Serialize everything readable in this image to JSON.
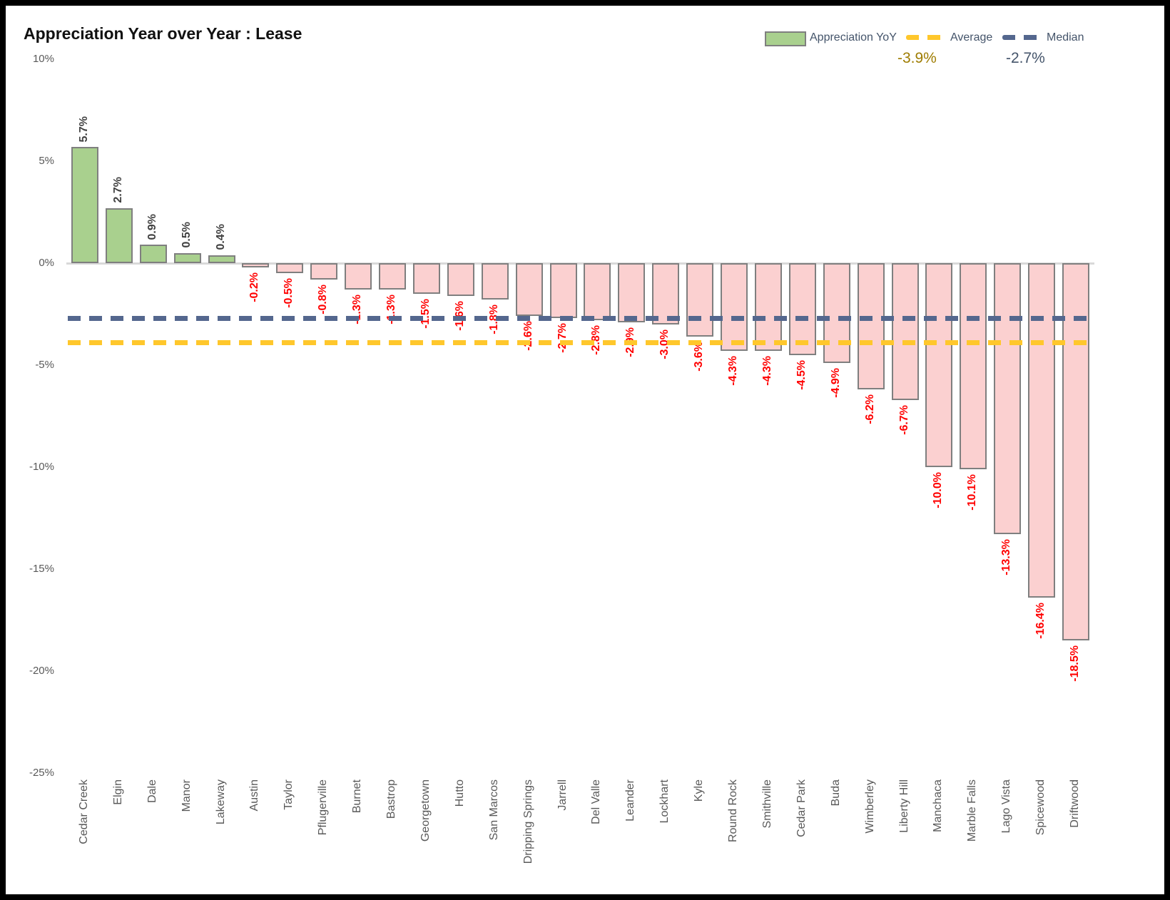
{
  "window": {
    "title": "Appreciation Year over Year : Lease"
  },
  "legend": {
    "series_label": "Appreciation YoY",
    "average_label": "Average",
    "average_value": "-3.9%",
    "median_label": "Median",
    "median_value": "-2.7%"
  },
  "colors": {
    "positive_bar": "#A9D08E",
    "negative_bar": "#FBD0D0",
    "bar_border": "#7F7F7F",
    "positive_value_label": "#404040",
    "negative_value_label": "#FF0000",
    "average_line": "#FFC72C",
    "median_line": "#54678E",
    "axis_tick_label": "#595959",
    "category_label": "#595959",
    "legend_text": "#44546A",
    "average_value_text": "#9E7C00",
    "median_value_text": "#44546A",
    "zero_axis_line": "#D9D9D9"
  },
  "chart_data": {
    "type": "bar",
    "title": "Appreciation Year over Year : Lease",
    "series_name": "Appreciation YoY",
    "categories": [
      "Cedar Creek",
      "Elgin",
      "Dale",
      "Manor",
      "Lakeway",
      "Austin",
      "Taylor",
      "Pflugerville",
      "Burnet",
      "Bastrop",
      "Georgetown",
      "Hutto",
      "San Marcos",
      "Dripping Springs",
      "Jarrell",
      "Del Valle",
      "Leander",
      "Lockhart",
      "Kyle",
      "Round Rock",
      "Smithville",
      "Cedar Park",
      "Buda",
      "Wimberley",
      "Liberty Hill",
      "Manchaca",
      "Marble Falls",
      "Lago Vista",
      "Spicewood",
      "Driftwood"
    ],
    "values": [
      5.7,
      2.7,
      0.9,
      0.5,
      0.4,
      -0.2,
      -0.5,
      -0.8,
      -1.3,
      -1.3,
      -1.5,
      -1.6,
      -1.8,
      -2.6,
      -2.7,
      -2.8,
      -2.9,
      -3.0,
      -3.6,
      -4.3,
      -4.3,
      -4.5,
      -4.9,
      -6.2,
      -6.7,
      -10.0,
      -10.1,
      -13.3,
      -16.4,
      -18.5
    ],
    "value_labels": [
      "5.7%",
      "2.7%",
      "0.9%",
      "0.5%",
      "0.4%",
      "-0.2%",
      "-0.5%",
      "-0.8%",
      "-1.3%",
      "-1.3%",
      "-1.5%",
      "-1.6%",
      "-1.8%",
      "-2.6%",
      "-2.7%",
      "-2.8%",
      "-2.9%",
      "-3.0%",
      "-3.6%",
      "-4.3%",
      "-4.3%",
      "-4.5%",
      "-4.9%",
      "-6.2%",
      "-6.7%",
      "-10.0%",
      "-10.1%",
      "-13.3%",
      "-16.4%",
      "-18.5%"
    ],
    "average": -3.9,
    "median": -2.7,
    "ylim": [
      -25,
      10
    ],
    "ytick_values": [
      10,
      5,
      0,
      -5,
      -10,
      -15,
      -20,
      -25
    ],
    "ytick_labels": [
      "10%",
      "5%",
      "0%",
      "-5%",
      "-10%",
      "-15%",
      "-20%",
      "-25%"
    ],
    "grid": false,
    "legend_position": "top-right"
  }
}
